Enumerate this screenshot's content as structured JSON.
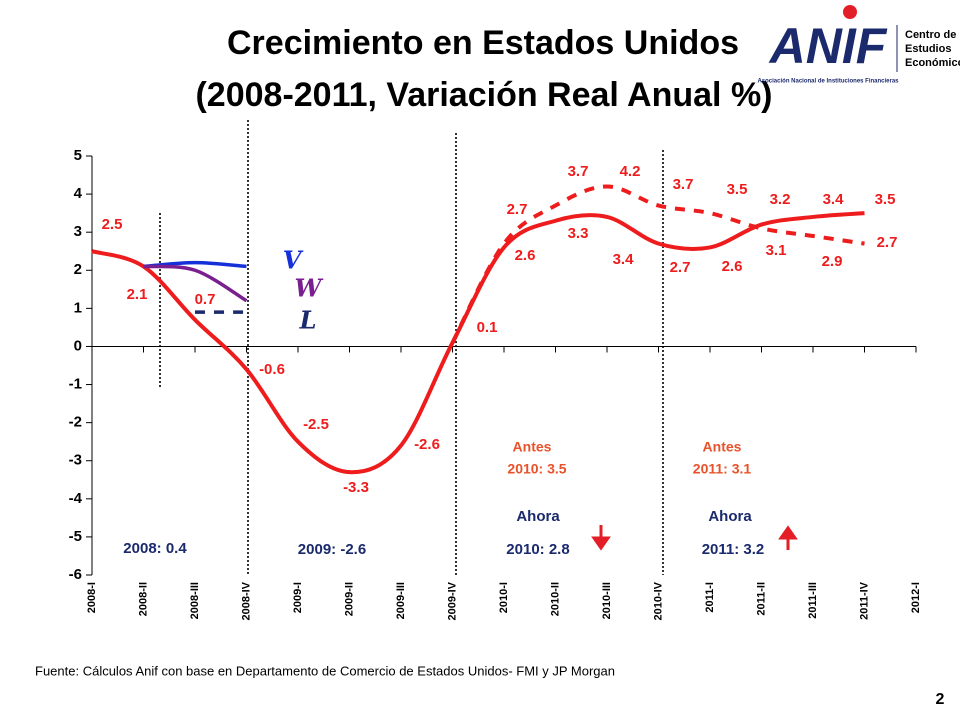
{
  "chart_data": {
    "type": "line",
    "title": "Crecimiento en Estados Unidos",
    "subtitle": "(2008-2011, Variación Real Anual %)",
    "categories": [
      "2008-I",
      "2008-II",
      "2008-III",
      "2008-IV",
      "2009-I",
      "2009-II",
      "2009-III",
      "2009-IV",
      "2010-I",
      "2010-II",
      "2010-III",
      "2010-IV",
      "2011-I",
      "2011-II",
      "2011-III",
      "2011-IV",
      "2012-I"
    ],
    "series": [
      {
        "color": "#ee1c1c",
        "dashed": false,
        "values": [
          2.5,
          2.1,
          0.7,
          -0.6,
          -2.5,
          -3.3,
          -2.6,
          0.1,
          2.6,
          3.3,
          3.4,
          2.7,
          2.6,
          3.2,
          3.4,
          3.5,
          null
        ]
      },
      {
        "color": "#ee1c1c",
        "dashed": true,
        "values": [
          null,
          null,
          null,
          null,
          null,
          null,
          null,
          0.1,
          2.7,
          3.7,
          4.2,
          3.7,
          3.5,
          3.1,
          2.9,
          2.7,
          null
        ]
      },
      {
        "name": "V",
        "color": "#1530d8",
        "dashed": false,
        "values": [
          null,
          2.1,
          2.2,
          2.1,
          null,
          null,
          null,
          null,
          null,
          null,
          null,
          null,
          null,
          null,
          null,
          null,
          null
        ]
      },
      {
        "name": "W",
        "color": "#7a1f8f",
        "dashed": false,
        "values": [
          null,
          2.1,
          2.0,
          1.2,
          null,
          null,
          null,
          null,
          null,
          null,
          null,
          null,
          null,
          null,
          null,
          null,
          null
        ]
      },
      {
        "name": "L",
        "color": "#1a2a6c",
        "dashed": true,
        "values": [
          null,
          null,
          0.9,
          0.9,
          null,
          null,
          null,
          null,
          null,
          null,
          null,
          null,
          null,
          null,
          null,
          null,
          null
        ]
      }
    ],
    "ylim": [
      -6,
      5
    ],
    "yticks": [
      -6,
      -5,
      -4,
      -3,
      -2,
      -1,
      0,
      1,
      2,
      3,
      4,
      5
    ],
    "annotations": [
      "2008: 0.4",
      "2009: -2.6",
      "Antes",
      "2010: 3.5",
      "Ahora",
      "2010: 2.8",
      "Antes",
      "2011: 3.1",
      "Ahora",
      "2011: 3.2"
    ]
  },
  "logo": {
    "name": "ANIF",
    "tagline": "Asociación Nacional de Instituciones Financieras",
    "center": [
      "Centro de",
      "Estudios",
      "Económicos"
    ]
  },
  "footer": {
    "source": "Fuente: Cálculos Anif con base en Departamento de Comercio de Estados Unidos- FMI y JP Morgan",
    "page": "2"
  }
}
